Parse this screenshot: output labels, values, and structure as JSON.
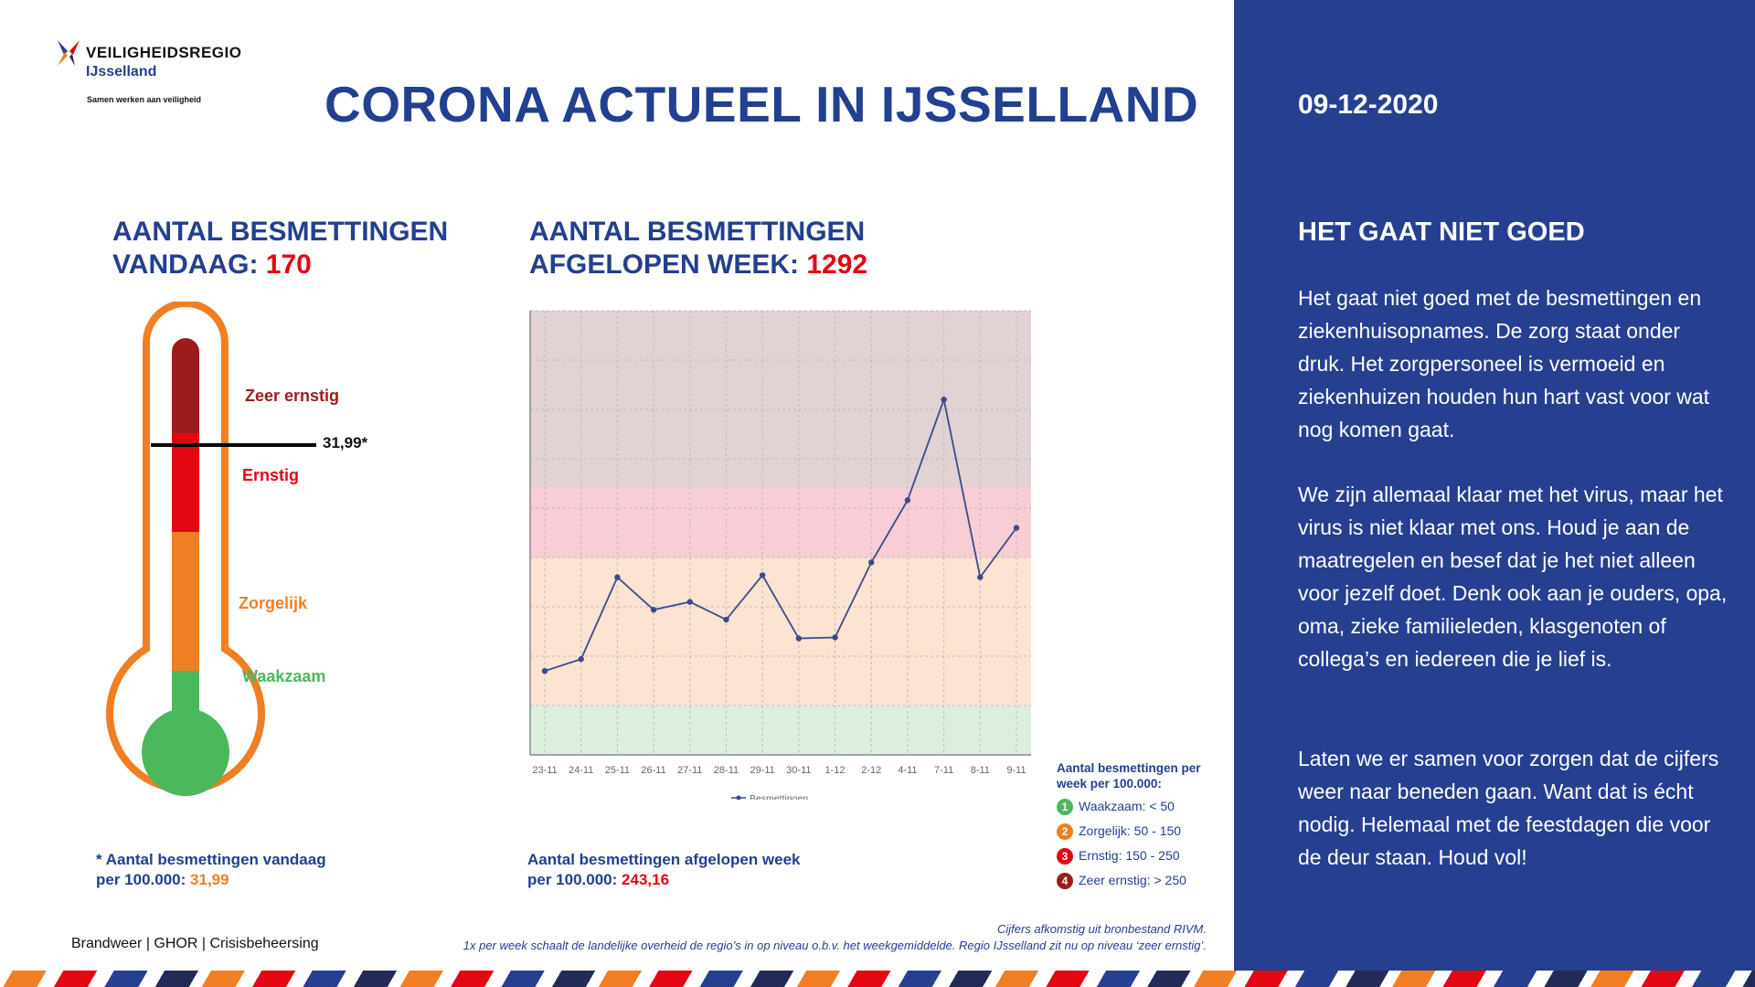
{
  "logo": {
    "brand": "VEILIGHEIDSREGIO",
    "region": "IJsselland",
    "tagline": "Samen werken aan veiligheid"
  },
  "title": "CORONA ACTUEEL IN IJSSELLAND",
  "date": "09-12-2020",
  "today": {
    "heading_line1": "AANTAL BESMETTINGEN",
    "heading_line2": "VANDAAG:",
    "value": "170",
    "marker_label": "31,99*",
    "footnote_line1": "* Aantal besmettingen vandaag",
    "footnote_line2": "per 100.000:",
    "footnote_value": "31,99"
  },
  "thermometer": {
    "levels": [
      {
        "label": "Zeer ernstig",
        "color": "#9e1b1b"
      },
      {
        "label": "Ernstig",
        "color": "#e30613"
      },
      {
        "label": "Zorgelijk",
        "color": "#f07f23"
      },
      {
        "label": "Waakzaam",
        "color": "#4cb85c"
      }
    ]
  },
  "week": {
    "heading_line1": "AANTAL BESMETTINGEN",
    "heading_line2": "AFGELOPEN WEEK:",
    "value": "1292",
    "footnote_line1": "Aantal besmettingen afgelopen week",
    "footnote_line2": "per 100.000:",
    "footnote_value": "243,16"
  },
  "chart_data": {
    "type": "line",
    "x": [
      "23-11",
      "24-11",
      "25-11",
      "26-11",
      "27-11",
      "28-11",
      "29-11",
      "30-11",
      "1-12",
      "2-12",
      "4-11",
      "7-11",
      "8-11",
      "9-11"
    ],
    "series": [
      {
        "name": "Besmettingen",
        "values": [
          85,
          97,
          180,
          147,
          155,
          137,
          182,
          118,
          119,
          195,
          258,
          360,
          180,
          230
        ]
      }
    ],
    "ylim": [
      0,
      450
    ],
    "grid": true,
    "bands": [
      {
        "from": 0,
        "to": 50,
        "color": "#dcefdf"
      },
      {
        "from": 50,
        "to": 200,
        "color": "#fde3d2"
      },
      {
        "from": 200,
        "to": 270,
        "color": "#f8cdd5"
      },
      {
        "from": 270,
        "to": 450,
        "color": "#e2d2d4"
      }
    ],
    "legend_position": "bottom"
  },
  "legend": {
    "title": "Aantal besmettingen per week per 100.000:",
    "items": [
      {
        "num": "1",
        "text": "Waakzaam: < 50",
        "color": "#4cb85c"
      },
      {
        "num": "2",
        "text": "Zorgelijk: 50 - 150",
        "color": "#f07f23"
      },
      {
        "num": "3",
        "text": "Ernstig: 150 - 250",
        "color": "#e30613"
      },
      {
        "num": "4",
        "text": "Zeer ernstig: > 250",
        "color": "#9e1b1b"
      }
    ]
  },
  "side": {
    "heading": "HET GAAT NIET GOED",
    "paragraphs": [
      "Het gaat niet goed met de besmettingen en ziekenhuisopnames. De zorg staat onder druk. Het zorgpersoneel is vermoeid en ziekenhuizen houden hun hart vast voor wat nog komen gaat.",
      "We zijn allemaal klaar met het virus, maar het virus is niet klaar met ons. Houd je aan de maatregelen en besef dat je het niet alleen voor jezelf doet. Denk ook aan je ouders, opa, oma, zieke familieleden, klasgenoten of collega’s en iedereen die je lief is.",
      "Laten we er samen voor zorgen dat de cijfers weer naar beneden gaan. Want dat is écht nodig. Helemaal met de feestdagen die voor de deur staan. Houd vol!"
    ]
  },
  "footer": {
    "orgs": "Brandweer | GHOR | Crisisbeheersing",
    "source_line1": "Cijfers afkomstig uit bronbestand RIVM.",
    "source_line2": "1x per week schaalt de landelijke overheid de regio’s in op niveau o.b.v. het weekgemiddelde. Regio IJsselland zit nu op niveau ‘zeer ernstig’."
  }
}
